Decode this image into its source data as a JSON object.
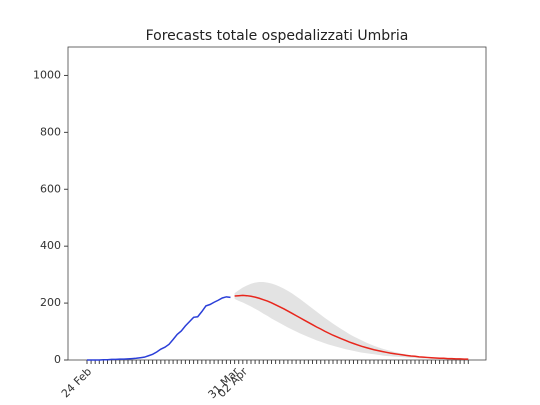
{
  "chart_data": {
    "type": "line",
    "title": "Forecasts totale ospedalizzati Umbria",
    "categories": [
      "24 Feb",
      null,
      null,
      null,
      null,
      null,
      null,
      null,
      null,
      null,
      null,
      null,
      null,
      null,
      null,
      null,
      null,
      null,
      null,
      null,
      null,
      null,
      null,
      null,
      null,
      null,
      null,
      null,
      null,
      null,
      null,
      null,
      null,
      null,
      null,
      null,
      "31 Mar",
      null,
      "02 Apr",
      null,
      null,
      null,
      null,
      null,
      null,
      null,
      null,
      null,
      null,
      null,
      null,
      null,
      null,
      null,
      null,
      null,
      null,
      null,
      null,
      null,
      null,
      null,
      null,
      null,
      null,
      null,
      null,
      null,
      null,
      null,
      null,
      null,
      null,
      null,
      null,
      null,
      null,
      null,
      null,
      null,
      null,
      null,
      null,
      null,
      null,
      null,
      null,
      null,
      null,
      null,
      null,
      null,
      null,
      null
    ],
    "series": [
      {
        "color": "#2b3fd8",
        "values": [
          0,
          0,
          0,
          0,
          1,
          1,
          2,
          2,
          3,
          3,
          4,
          5,
          6,
          8,
          10,
          15,
          20,
          28,
          38,
          45,
          55,
          72,
          90,
          102,
          120,
          135,
          150,
          152,
          170,
          190,
          195,
          203,
          210,
          218,
          222,
          220,
          null,
          null,
          null,
          null,
          null,
          null,
          null,
          null,
          null,
          null,
          null,
          null,
          null,
          null,
          null,
          null,
          null,
          null,
          null,
          null,
          null,
          null,
          null,
          null,
          null,
          null,
          null,
          null,
          null,
          null,
          null,
          null,
          null,
          null,
          null,
          null,
          null,
          null,
          null,
          null,
          null,
          null,
          null,
          null,
          null,
          null,
          null,
          null,
          null,
          null,
          null,
          null,
          null,
          null,
          null,
          null,
          null,
          null
        ]
      },
      {
        "color": "#e8261c",
        "values": [
          null,
          null,
          null,
          null,
          null,
          null,
          null,
          null,
          null,
          null,
          null,
          null,
          null,
          null,
          null,
          null,
          null,
          null,
          null,
          null,
          null,
          null,
          null,
          null,
          null,
          null,
          null,
          null,
          null,
          null,
          null,
          null,
          null,
          null,
          null,
          null,
          225,
          226,
          227,
          226,
          224,
          221,
          217,
          212,
          207,
          201,
          194,
          187,
          180,
          172,
          164,
          156,
          148,
          140,
          132,
          124,
          116,
          109,
          101,
          94,
          87,
          81,
          75,
          69,
          63,
          58,
          53,
          48,
          44,
          40,
          36,
          33,
          30,
          27,
          24,
          22,
          20,
          18,
          16,
          14,
          13,
          11,
          10,
          9,
          8,
          7,
          6,
          6,
          5,
          5,
          4,
          4,
          3,
          3
        ]
      }
    ],
    "band": {
      "color": "#e3e3e3",
      "upper": [
        null,
        null,
        null,
        null,
        null,
        null,
        null,
        null,
        null,
        null,
        null,
        null,
        null,
        null,
        null,
        null,
        null,
        null,
        null,
        null,
        null,
        null,
        null,
        null,
        null,
        null,
        null,
        null,
        null,
        null,
        null,
        null,
        null,
        null,
        null,
        null,
        235,
        245,
        255,
        262,
        268,
        272,
        274,
        274,
        272,
        269,
        264,
        258,
        251,
        243,
        234,
        224,
        214,
        203,
        192,
        181,
        170,
        159,
        148,
        138,
        128,
        118,
        109,
        100,
        91,
        83,
        76,
        69,
        62,
        56,
        50,
        45,
        40,
        36,
        32,
        28,
        25,
        22,
        19,
        17,
        15,
        13,
        11,
        10,
        9,
        8,
        7,
        6,
        6,
        5,
        5,
        4,
        4,
        3
      ],
      "lower": [
        null,
        null,
        null,
        null,
        null,
        null,
        null,
        null,
        null,
        null,
        null,
        null,
        null,
        null,
        null,
        null,
        null,
        null,
        null,
        null,
        null,
        null,
        null,
        null,
        null,
        null,
        null,
        null,
        null,
        null,
        null,
        null,
        null,
        null,
        null,
        null,
        215,
        208,
        202,
        195,
        188,
        180,
        172,
        163,
        155,
        146,
        138,
        130,
        122,
        114,
        107,
        100,
        93,
        87,
        81,
        75,
        69,
        64,
        59,
        54,
        50,
        46,
        42,
        38,
        35,
        32,
        29,
        26,
        24,
        22,
        20,
        18,
        16,
        14,
        13,
        12,
        11,
        10,
        9,
        8,
        7,
        6,
        5,
        5,
        4,
        4,
        3,
        3,
        3,
        2,
        2,
        2,
        2,
        2
      ]
    },
    "ylim": [
      0,
      1100
    ],
    "yticks": [
      0,
      200,
      400,
      600,
      800,
      1000
    ]
  }
}
